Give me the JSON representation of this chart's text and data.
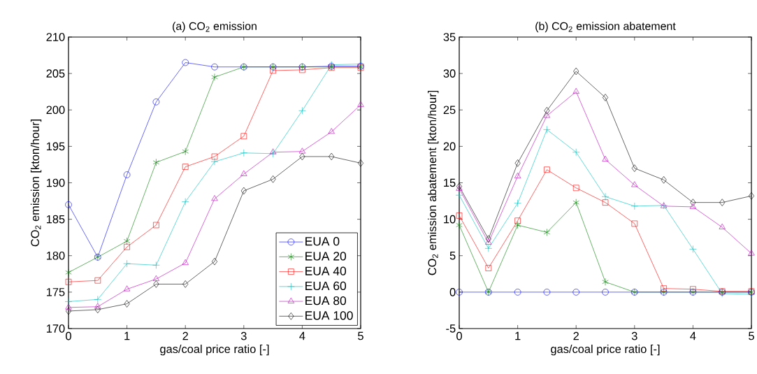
{
  "chart_data": [
    {
      "type": "line",
      "title": "(a) CO$_{2}$ emission",
      "xlabel": "gas/coal price ratio [-]",
      "ylabel": "CO$_{2}$ emission [kton/hour]",
      "x": [
        0,
        0.5,
        1,
        1.5,
        2,
        2.5,
        3,
        3.5,
        4,
        4.5,
        5
      ],
      "xlim": [
        0,
        5
      ],
      "xticks": [
        0,
        1,
        2,
        3,
        4,
        5
      ],
      "ylim": [
        170,
        210
      ],
      "yticks": [
        170,
        175,
        180,
        185,
        190,
        195,
        200,
        205,
        210
      ],
      "grid": false,
      "legend": "bottom right",
      "line_style": "solid",
      "series": [
        {
          "name": "EUA 0",
          "color": "#0000ff",
          "marker": "circle",
          "values": [
            187.0,
            179.8,
            191.1,
            201.1,
            206.5,
            205.9,
            205.9,
            205.9,
            205.9,
            206.0,
            206.0
          ]
        },
        {
          "name": "EUA 20",
          "color": "#008000",
          "marker": "cross",
          "values": [
            177.7,
            179.8,
            182.0,
            192.8,
            194.3,
            204.5,
            205.9,
            205.9,
            205.9,
            205.9,
            205.9
          ]
        },
        {
          "name": "EUA 40",
          "color": "#ff0000",
          "marker": "square",
          "values": [
            176.4,
            176.6,
            181.2,
            184.2,
            192.2,
            193.6,
            196.4,
            205.4,
            205.5,
            205.8,
            205.8
          ]
        },
        {
          "name": "EUA 60",
          "color": "#00bfbf",
          "marker": "cross",
          "values": [
            173.7,
            174.0,
            178.9,
            178.7,
            187.4,
            192.9,
            194.1,
            194.0,
            199.9,
            206.2,
            206.3
          ]
        },
        {
          "name": "EUA 80",
          "color": "#bf00bf",
          "marker": "triangle",
          "values": [
            172.9,
            173.0,
            175.4,
            176.8,
            179.0,
            187.8,
            191.2,
            194.2,
            194.3,
            197.0,
            200.7
          ]
        },
        {
          "name": "EUA 100",
          "color": "#000000",
          "marker": "diamond",
          "values": [
            172.4,
            172.6,
            173.4,
            176.1,
            176.1,
            179.2,
            188.9,
            190.5,
            193.6,
            193.6,
            192.7
          ]
        }
      ]
    },
    {
      "type": "line",
      "title": "(b) CO$_{2}$ emission abatement",
      "xlabel": "gas/coal price ratio [-]",
      "ylabel": "CO$_{2}$ emission abatement [kton/hour]",
      "x": [
        0,
        0.5,
        1,
        1.5,
        2,
        2.5,
        3,
        3.5,
        4,
        4.5,
        5
      ],
      "xlim": [
        0,
        5
      ],
      "xticks": [
        0,
        1,
        2,
        3,
        4,
        5
      ],
      "ylim": [
        -5,
        35
      ],
      "yticks": [
        -5,
        0,
        5,
        10,
        15,
        20,
        25,
        30,
        35
      ],
      "grid": false,
      "legend": false,
      "line_style": "solid",
      "series": [
        {
          "color": "#0000ff",
          "marker": "circle",
          "values": [
            0,
            0,
            0,
            0,
            0,
            0,
            0,
            0,
            0,
            0,
            0
          ]
        },
        {
          "color": "#008000",
          "marker": "cross",
          "values": [
            9.2,
            0,
            9.2,
            8.2,
            12.3,
            1.4,
            0,
            0,
            0,
            0,
            0
          ]
        },
        {
          "color": "#ff0000",
          "marker": "square",
          "values": [
            10.5,
            3.3,
            9.8,
            16.8,
            14.3,
            12.3,
            9.4,
            0.5,
            0.4,
            0.1,
            0.1
          ]
        },
        {
          "color": "#00bfbf",
          "marker": "cross",
          "values": [
            13.3,
            6.0,
            12.2,
            22.3,
            19.2,
            13.1,
            11.8,
            11.9,
            5.9,
            -0.2,
            -0.3
          ]
        },
        {
          "color": "#bf00bf",
          "marker": "triangle",
          "values": [
            14.2,
            6.8,
            15.9,
            24.2,
            27.5,
            18.2,
            14.7,
            11.8,
            11.7,
            8.9,
            5.3
          ]
        },
        {
          "color": "#000000",
          "marker": "diamond",
          "values": [
            14.5,
            7.3,
            17.7,
            24.9,
            30.3,
            26.7,
            17.0,
            15.4,
            12.3,
            12.3,
            13.2
          ]
        }
      ]
    }
  ]
}
